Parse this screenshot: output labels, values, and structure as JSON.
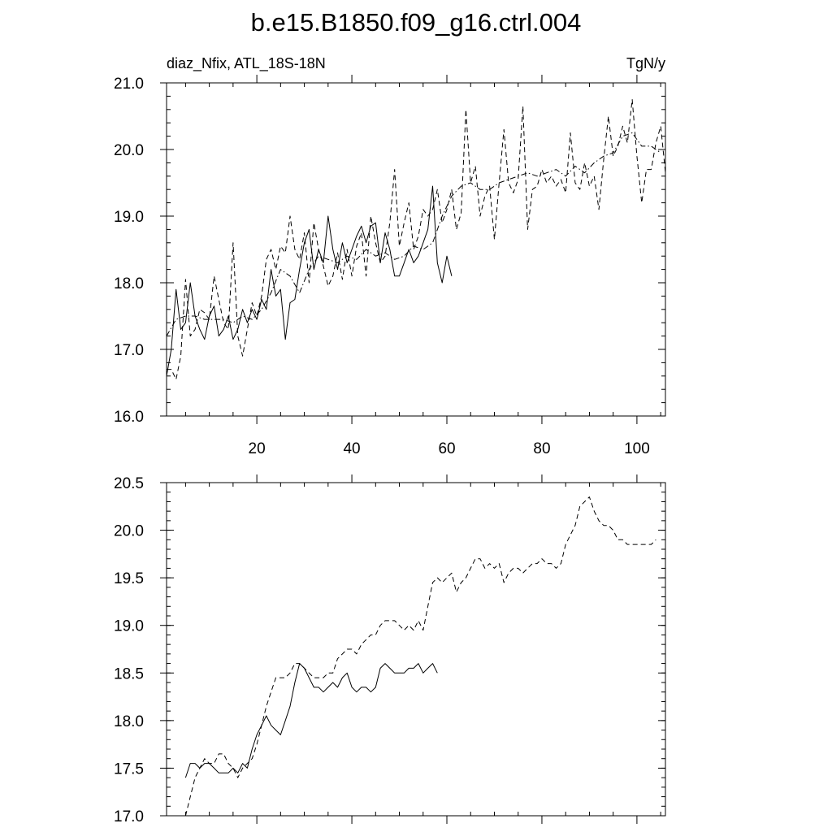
{
  "title": "b.e15.B1850.f09_g16.ctrl.004",
  "chart_data": [
    {
      "type": "line",
      "left_label": "diaz_Nfix, ATL_18S-18N",
      "right_label": "TgN/y",
      "xlim": [
        1,
        106
      ],
      "ylim": [
        16.0,
        21.0
      ],
      "x_ticks": [
        20,
        40,
        60,
        80,
        100
      ],
      "x_tick_labels": [
        "20",
        "40",
        "60",
        "80",
        "100"
      ],
      "y_ticks": [
        16,
        17,
        18,
        19,
        20,
        21
      ],
      "y_tick_labels": [
        "16.0",
        "17.0",
        "18.0",
        "19.0",
        "20.0",
        "21.0"
      ],
      "grid": false,
      "series": [
        {
          "style": "solid",
          "x": [
            1,
            2,
            3,
            4,
            5,
            6,
            7,
            8,
            9,
            10,
            11,
            12,
            13,
            14,
            15,
            16,
            17,
            18,
            19,
            20,
            21,
            22,
            23,
            24,
            25,
            26,
            27,
            28,
            29,
            30,
            31,
            32,
            33,
            34,
            35,
            36,
            37,
            38,
            39,
            40,
            41,
            42,
            43,
            44,
            45,
            46,
            47,
            48,
            49,
            50,
            51,
            52,
            53,
            54,
            55,
            56,
            57,
            58,
            59,
            60,
            61
          ],
          "y": [
            16.6,
            17.0,
            17.9,
            17.3,
            17.4,
            18.0,
            17.5,
            17.3,
            17.15,
            17.5,
            17.65,
            17.2,
            17.3,
            17.5,
            17.15,
            17.3,
            17.6,
            17.4,
            17.6,
            17.45,
            17.75,
            17.6,
            18.2,
            17.8,
            17.9,
            17.15,
            17.7,
            17.75,
            18.2,
            18.6,
            18.8,
            18.2,
            18.5,
            18.3,
            19.0,
            18.5,
            18.2,
            18.6,
            18.3,
            18.5,
            18.7,
            18.85,
            18.6,
            18.85,
            18.9,
            18.3,
            18.75,
            18.5,
            18.1,
            18.1,
            18.3,
            18.5,
            18.3,
            18.4,
            18.6,
            18.8,
            19.45,
            18.3,
            18.0,
            18.4,
            18.1
          ]
        },
        {
          "style": "dashed",
          "x": [
            1,
            2,
            3,
            4,
            5,
            6,
            7,
            8,
            9,
            10,
            11,
            12,
            13,
            14,
            15,
            16,
            17,
            18,
            19,
            20,
            21,
            22,
            23,
            24,
            25,
            26,
            27,
            28,
            29,
            30,
            31,
            32,
            33,
            34,
            35,
            36,
            37,
            38,
            39,
            40,
            41,
            42,
            43,
            44,
            45,
            46,
            47,
            48,
            49,
            50,
            51,
            52,
            53,
            54,
            55,
            56,
            57,
            58,
            59,
            60,
            61,
            62,
            63,
            64,
            65,
            66,
            67,
            68,
            69,
            70,
            71,
            72,
            73,
            74,
            75,
            76,
            77,
            78,
            79,
            80,
            81,
            82,
            83,
            84,
            85,
            86,
            87,
            88,
            89,
            90,
            91,
            92,
            93,
            94,
            95,
            96,
            97,
            98,
            99,
            100,
            101,
            102,
            103,
            104,
            105,
            106
          ],
          "y": [
            16.7,
            16.7,
            16.55,
            16.9,
            18.05,
            17.2,
            17.3,
            17.6,
            17.55,
            17.45,
            18.1,
            17.75,
            17.4,
            17.3,
            18.6,
            17.2,
            16.9,
            17.3,
            17.7,
            17.5,
            17.8,
            18.35,
            18.5,
            18.2,
            18.55,
            18.45,
            19.0,
            18.5,
            18.35,
            18.75,
            18.0,
            18.9,
            18.5,
            18.25,
            17.95,
            18.1,
            18.45,
            18.05,
            18.5,
            18.1,
            18.55,
            18.75,
            18.1,
            19.0,
            18.6,
            18.3,
            18.4,
            18.9,
            19.7,
            18.55,
            18.9,
            19.2,
            18.5,
            18.7,
            19.1,
            19.0,
            19.1,
            19.4,
            18.9,
            19.1,
            19.4,
            18.8,
            19.05,
            20.6,
            19.5,
            19.75,
            19.0,
            19.3,
            19.45,
            18.65,
            19.5,
            20.3,
            19.5,
            19.35,
            19.55,
            20.65,
            18.8,
            19.4,
            19.45,
            19.7,
            19.5,
            19.6,
            19.45,
            19.55,
            19.35,
            20.25,
            19.5,
            19.4,
            19.8,
            19.45,
            19.6,
            19.1,
            19.85,
            20.5,
            19.9,
            20.05,
            20.35,
            20.1,
            20.75,
            19.9,
            19.2,
            19.7,
            19.7,
            20.1,
            20.35,
            19.65
          ]
        },
        {
          "style": "dash-dot",
          "x": [
            1,
            3,
            5,
            7,
            9,
            11,
            13,
            15,
            17,
            19,
            21,
            23,
            25,
            27,
            29,
            31,
            33,
            35,
            37,
            39,
            41,
            43,
            45,
            47,
            49,
            51,
            53,
            55,
            57,
            59,
            61,
            63,
            65,
            67,
            69,
            71,
            73,
            75,
            77,
            79,
            81,
            83,
            85,
            87,
            89,
            91,
            93,
            95,
            97,
            99,
            101,
            103,
            105
          ],
          "y": [
            17.2,
            17.45,
            17.5,
            17.5,
            17.45,
            17.45,
            17.45,
            17.4,
            17.5,
            17.45,
            17.6,
            17.85,
            18.2,
            18.1,
            17.85,
            18.2,
            18.4,
            18.35,
            18.3,
            18.4,
            18.35,
            18.5,
            18.4,
            18.45,
            18.35,
            18.4,
            18.55,
            18.5,
            18.6,
            19.0,
            19.3,
            19.45,
            19.5,
            19.4,
            19.4,
            19.5,
            19.55,
            19.6,
            19.65,
            19.6,
            19.65,
            19.7,
            19.6,
            19.75,
            19.65,
            19.8,
            19.9,
            19.95,
            20.2,
            20.25,
            20.05,
            20.05,
            19.95
          ]
        }
      ]
    },
    {
      "type": "line",
      "xlim": [
        1,
        106
      ],
      "ylim": [
        17.0,
        20.5
      ],
      "x_ticks": [
        20,
        40,
        60,
        80,
        100
      ],
      "y_ticks": [
        17.0,
        17.5,
        18.0,
        18.5,
        19.0,
        19.5,
        20.0,
        20.5
      ],
      "y_tick_labels": [
        "17.0",
        "17.5",
        "18.0",
        "18.5",
        "19.0",
        "19.5",
        "20.0",
        "20.5"
      ],
      "grid": false,
      "series": [
        {
          "style": "solid",
          "x": [
            5,
            6,
            7,
            8,
            9,
            10,
            11,
            12,
            13,
            14,
            15,
            16,
            17,
            18,
            19,
            20,
            21,
            22,
            23,
            24,
            25,
            26,
            27,
            28,
            29,
            30,
            31,
            32,
            33,
            34,
            35,
            36,
            37,
            38,
            39,
            40,
            41,
            42,
            43,
            44,
            45,
            46,
            47,
            48,
            49,
            50,
            51,
            52,
            53,
            54,
            55,
            56,
            57,
            58
          ],
          "y": [
            17.4,
            17.55,
            17.55,
            17.5,
            17.55,
            17.55,
            17.5,
            17.45,
            17.45,
            17.45,
            17.5,
            17.45,
            17.55,
            17.5,
            17.7,
            17.85,
            17.95,
            18.05,
            17.95,
            17.9,
            17.85,
            18.0,
            18.15,
            18.4,
            18.6,
            18.55,
            18.45,
            18.35,
            18.35,
            18.3,
            18.35,
            18.4,
            18.35,
            18.45,
            18.5,
            18.35,
            18.3,
            18.35,
            18.35,
            18.3,
            18.35,
            18.55,
            18.6,
            18.55,
            18.5,
            18.5,
            18.5,
            18.55,
            18.55,
            18.6,
            18.5,
            18.55,
            18.6,
            18.5
          ]
        },
        {
          "style": "dashed",
          "x": [
            5,
            6,
            7,
            8,
            9,
            10,
            11,
            12,
            13,
            14,
            15,
            16,
            17,
            18,
            19,
            20,
            21,
            22,
            23,
            24,
            25,
            26,
            27,
            28,
            29,
            30,
            31,
            32,
            33,
            34,
            35,
            36,
            37,
            38,
            39,
            40,
            41,
            42,
            43,
            44,
            45,
            46,
            47,
            48,
            49,
            50,
            51,
            52,
            53,
            54,
            55,
            56,
            57,
            58,
            59,
            60,
            61,
            62,
            63,
            64,
            65,
            66,
            67,
            68,
            69,
            70,
            71,
            72,
            73,
            74,
            75,
            76,
            77,
            78,
            79,
            80,
            81,
            82,
            83,
            84,
            85,
            86,
            87,
            88,
            89,
            90,
            91,
            92,
            93,
            94,
            95,
            96,
            97,
            98,
            99,
            100,
            101,
            102,
            103,
            104
          ],
          "y": [
            17.0,
            17.2,
            17.4,
            17.5,
            17.6,
            17.55,
            17.55,
            17.65,
            17.65,
            17.55,
            17.5,
            17.4,
            17.5,
            17.55,
            17.6,
            17.75,
            17.95,
            18.15,
            18.3,
            18.45,
            18.45,
            18.45,
            18.5,
            18.6,
            18.6,
            18.55,
            18.5,
            18.45,
            18.45,
            18.45,
            18.5,
            18.5,
            18.65,
            18.7,
            18.75,
            18.75,
            18.7,
            18.8,
            18.85,
            18.9,
            18.9,
            19.0,
            19.05,
            19.05,
            19.05,
            19.0,
            18.95,
            19.0,
            18.95,
            19.05,
            18.95,
            19.2,
            19.45,
            19.5,
            19.45,
            19.5,
            19.55,
            19.35,
            19.45,
            19.5,
            19.6,
            19.7,
            19.7,
            19.6,
            19.65,
            19.6,
            19.65,
            19.45,
            19.55,
            19.6,
            19.6,
            19.55,
            19.6,
            19.65,
            19.65,
            19.7,
            19.65,
            19.65,
            19.6,
            19.65,
            19.85,
            19.95,
            20.05,
            20.25,
            20.3,
            20.35,
            20.2,
            20.1,
            20.05,
            20.05,
            20.0,
            19.9,
            19.9,
            19.85,
            19.85,
            19.85,
            19.85,
            19.85,
            19.85,
            19.9
          ]
        }
      ]
    }
  ]
}
